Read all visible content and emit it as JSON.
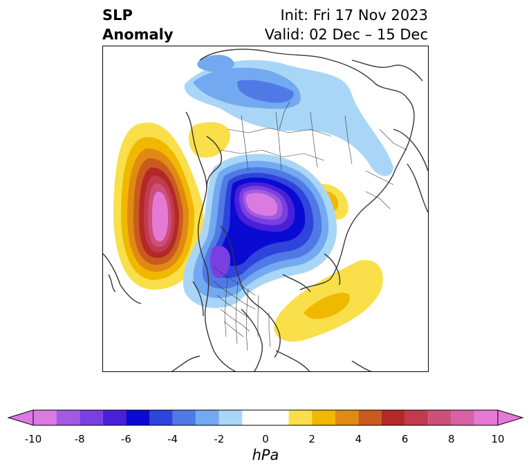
{
  "title": {
    "line1": "SLP",
    "line2": "Anomaly"
  },
  "run": {
    "init": "Init: Fri 17 Nov 2023",
    "valid": "Valid: 02 Dec – 15 Dec"
  },
  "colorbar": {
    "unit": "hPa",
    "tick_labels": [
      "-10",
      "-8",
      "-6",
      "-4",
      "-2",
      "0",
      "2",
      "4",
      "6",
      "8",
      "10"
    ],
    "bins": [
      {
        "from": -10,
        "to": -9,
        "color": "#d97be0"
      },
      {
        "from": -9,
        "to": -8,
        "color": "#a25ae0"
      },
      {
        "from": -8,
        "to": -7,
        "color": "#7a3fe0"
      },
      {
        "from": -7,
        "to": -6,
        "color": "#4a1fd8"
      },
      {
        "from": -6,
        "to": -5,
        "color": "#0a0ad2"
      },
      {
        "from": -5,
        "to": -4,
        "color": "#2e44db"
      },
      {
        "from": -4,
        "to": -3,
        "color": "#4f7ae6"
      },
      {
        "from": -3,
        "to": -2,
        "color": "#73a9f0"
      },
      {
        "from": -2,
        "to": -1,
        "color": "#a9d6f7"
      },
      {
        "from": -1,
        "to": 1,
        "color": "#ffffff"
      },
      {
        "from": 1,
        "to": 2,
        "color": "#f9e04a"
      },
      {
        "from": 2,
        "to": 3,
        "color": "#f0b800"
      },
      {
        "from": 3,
        "to": 4,
        "color": "#e08a14"
      },
      {
        "from": 4,
        "to": 5,
        "color": "#c85c1f"
      },
      {
        "from": 5,
        "to": 6,
        "color": "#b42828"
      },
      {
        "from": 6,
        "to": 7,
        "color": "#c23a50"
      },
      {
        "from": 7,
        "to": 8,
        "color": "#cc4f7a"
      },
      {
        "from": 8,
        "to": 9,
        "color": "#d762a8"
      },
      {
        "from": 9,
        "to": 10,
        "color": "#e57ad6"
      }
    ],
    "extend_low_color": "#d97be0",
    "extend_high_color": "#e57ad6"
  }
}
